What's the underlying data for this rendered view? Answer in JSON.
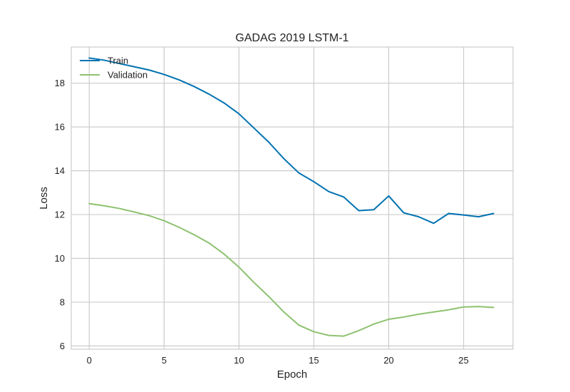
{
  "chart_data": {
    "type": "line",
    "title": "GADAG 2019 LSTM-1",
    "xlabel": "Epoch",
    "ylabel": "Loss",
    "xlim": [
      -1.2,
      28.3
    ],
    "ylim": [
      5.85,
      19.65
    ],
    "xticks": [
      0,
      5,
      10,
      15,
      20,
      25
    ],
    "yticks": [
      6,
      8,
      10,
      12,
      14,
      16,
      18
    ],
    "grid": true,
    "legend_position": "upper-left",
    "x": [
      0,
      1,
      2,
      3,
      4,
      5,
      6,
      7,
      8,
      9,
      10,
      11,
      12,
      13,
      14,
      15,
      16,
      17,
      18,
      19,
      20,
      21,
      22,
      23,
      24,
      25,
      26,
      27
    ],
    "series": [
      {
        "name": "Train",
        "color": "#0072B2",
        "values": [
          19.15,
          19.05,
          18.9,
          18.75,
          18.6,
          18.4,
          18.15,
          17.85,
          17.5,
          17.1,
          16.6,
          15.95,
          15.3,
          14.55,
          13.9,
          13.5,
          13.05,
          12.8,
          12.18,
          12.22,
          12.85,
          12.08,
          11.9,
          11.6,
          12.05,
          11.98,
          11.9,
          12.05
        ]
      },
      {
        "name": "Validation",
        "color": "#8DC26F",
        "values": [
          12.5,
          12.4,
          12.28,
          12.12,
          11.95,
          11.72,
          11.42,
          11.08,
          10.7,
          10.2,
          9.6,
          8.9,
          8.25,
          7.55,
          6.95,
          6.65,
          6.48,
          6.45,
          6.7,
          7.0,
          7.22,
          7.32,
          7.45,
          7.55,
          7.65,
          7.78,
          7.8,
          7.76
        ]
      }
    ]
  }
}
